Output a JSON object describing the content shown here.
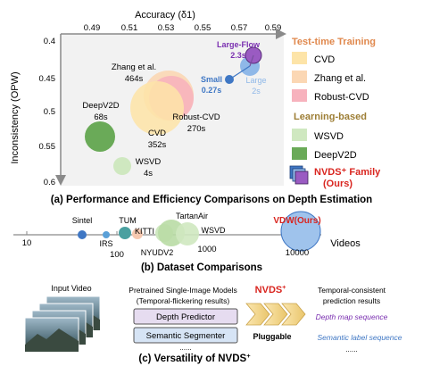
{
  "panel_a": {
    "caption": "(a) Performance and Efficiency Comparisons on Depth Estimation",
    "x_axis_title": "Accuracy (δ1)",
    "y_axis_title": "Inconsistency (OPW)",
    "x_ticks": [
      "0.49",
      "0.51",
      "0.53",
      "0.55",
      "0.57",
      "0.59"
    ],
    "y_ticks": [
      "0.4",
      "0.45",
      "0.5",
      "0.55",
      "0.6"
    ],
    "legend": {
      "test_time_title": "Test-time Training",
      "test_time_items": [
        "CVD",
        "Zhang et al.",
        "Robust-CVD"
      ],
      "learning_title": "Learning-based",
      "learning_items": [
        "WSVD",
        "DeepV2D"
      ],
      "family_label_1": "NVDS⁺ Family",
      "family_label_2": "(Ours)"
    },
    "bubble_labels": {
      "zhang_name": "Zhang et al.",
      "zhang_time": "464s",
      "deepv2d_name": "DeepV2D",
      "deepv2d_time": "68s",
      "robust_name": "Robust-CVD",
      "robust_time": "270s",
      "cvd_name": "CVD",
      "cvd_time": "352s",
      "wsvd_name": "WSVD",
      "wsvd_time": "4s",
      "small_name": "Small",
      "small_time": "0.27s",
      "large_name": "Large",
      "large_time": "2s",
      "flow_name": "Large-Flow",
      "flow_time": "2.3s"
    },
    "colors": {
      "cvd": "#fde4a8",
      "zhang": "#fbd7b4",
      "robust": "#f7b2bd",
      "wsvd": "#cfe8c0",
      "deepv2d": "#6aaa58",
      "small": "#3f77c4",
      "large": "#8fb8e8",
      "flow": "#9a5bc2",
      "orange_title": "#e0884d",
      "green_title": "#9d7e35",
      "red_text": "#d9251f"
    }
  },
  "panel_b": {
    "caption": "(b) Dataset Comparisons",
    "axis_label": "Videos",
    "ticks": [
      "10",
      "100",
      "1000",
      "10000"
    ],
    "datasets": {
      "sintel": "Sintel",
      "irs": "IRS",
      "tum": "TUM",
      "kitti": "KITTI",
      "tartanair": "TartanAir",
      "nyudv2": "NYUDV2",
      "wsvd": "WSVD",
      "vdw": "VDW(Ours)"
    }
  },
  "panel_c": {
    "caption_main": "(c) Versatility of NVDS",
    "caption_sup": "+",
    "input_label": "Input Video",
    "models_title_1": "Pretrained Single-Image Models",
    "models_title_2": "(Temporal-flickering results)",
    "depth_predictor": "Depth Predictor",
    "semantic_segmenter": "Semantic Segmenter",
    "dots_1": "......",
    "nvds_label": "NVDS",
    "nvds_sup": "+",
    "pluggable": "Pluggable",
    "output_title_1": "Temporal-consistent",
    "output_title_2": "prediction results",
    "depth_sequence": "Depth map sequence",
    "label_sequence": "Semantic label sequence",
    "dots_2": "......"
  }
}
